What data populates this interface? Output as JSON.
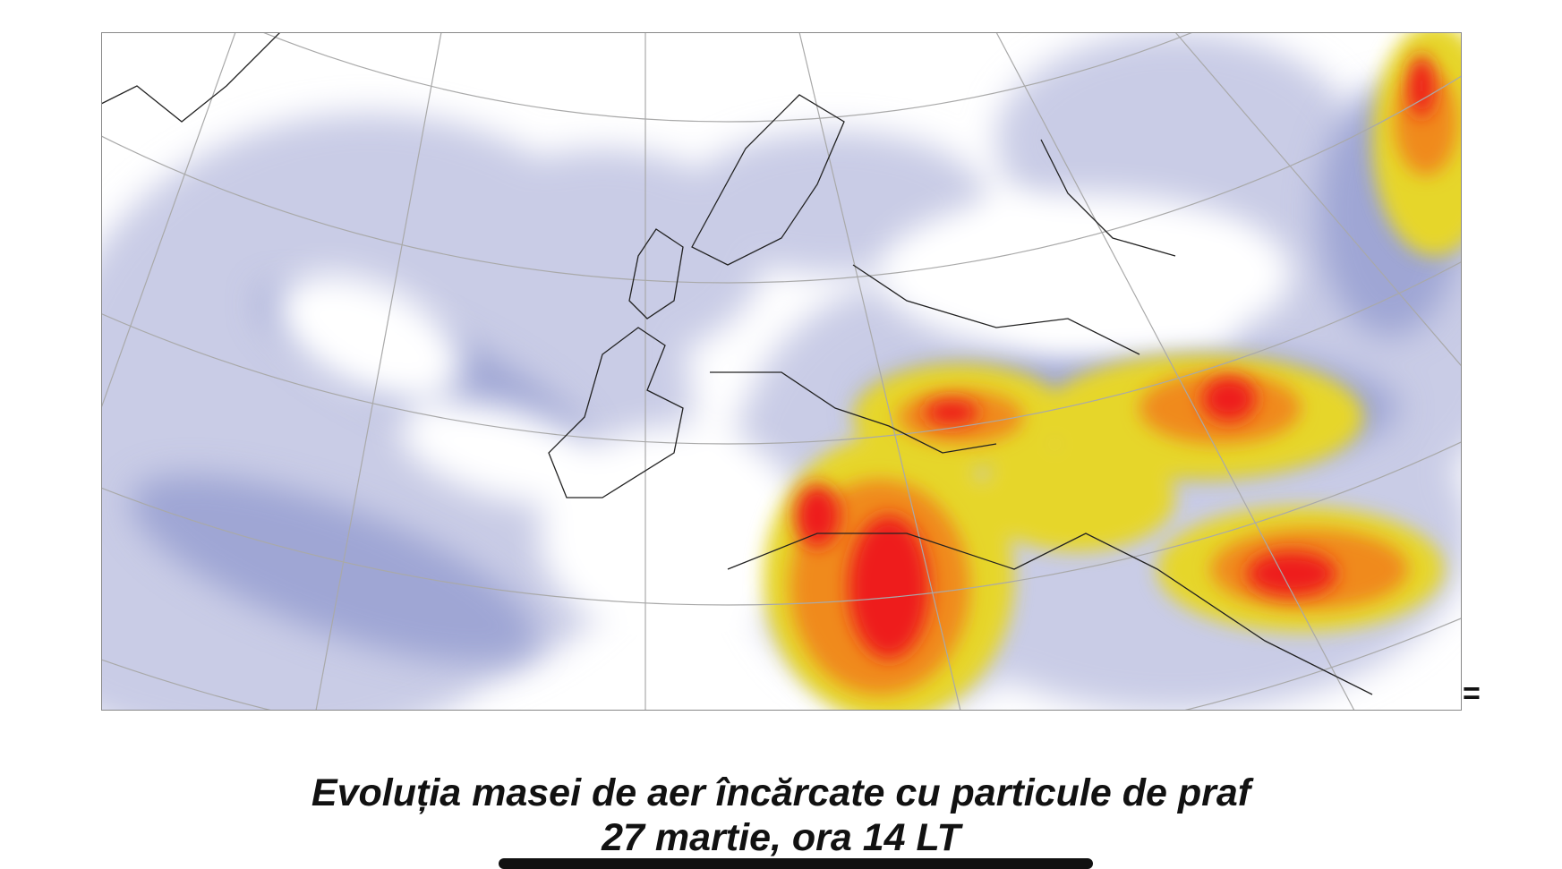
{
  "caption": {
    "line1": "Evoluția masei de aer încărcate cu particule de praf",
    "line2": "27 martie, ora 14 LT"
  },
  "map": {
    "edge_mark": "="
  }
}
